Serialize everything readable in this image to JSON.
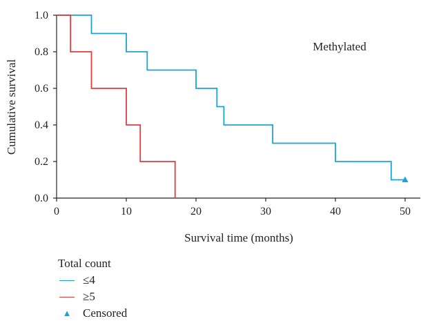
{
  "chart_data": {
    "type": "line",
    "step": true,
    "xlabel": "Survival time (months)",
    "ylabel": "Cumulative survival",
    "annotation": "Methylated",
    "xlim": [
      0,
      50
    ],
    "ylim": [
      0,
      1.0
    ],
    "x_ticks": [
      "0",
      "10",
      "20",
      "30",
      "40",
      "50"
    ],
    "y_ticks": [
      "0.0",
      "0.2",
      "0.4",
      "0.6",
      "0.8",
      "1.0"
    ],
    "legend_title": "Total count",
    "legend_position": "bottom-left",
    "series": [
      {
        "name": "≤4",
        "color": "#1aa3d9",
        "points": [
          [
            0,
            1.0
          ],
          [
            5,
            0.9
          ],
          [
            10,
            0.8
          ],
          [
            13,
            0.7
          ],
          [
            20,
            0.6
          ],
          [
            23,
            0.5
          ],
          [
            24,
            0.4
          ],
          [
            31,
            0.3
          ],
          [
            40,
            0.2
          ],
          [
            48,
            0.1
          ],
          [
            50,
            0.1
          ]
        ],
        "censored": [
          [
            50,
            0.1
          ]
        ]
      },
      {
        "name": "≥5",
        "color": "#e03c3c",
        "points": [
          [
            0,
            1.0
          ],
          [
            2,
            0.8
          ],
          [
            5,
            0.6
          ],
          [
            10,
            0.4
          ],
          [
            12,
            0.2
          ],
          [
            17,
            0.0
          ]
        ],
        "censored": []
      }
    ],
    "censored_label": "Censored",
    "censored_color": "#1aa3d9"
  }
}
